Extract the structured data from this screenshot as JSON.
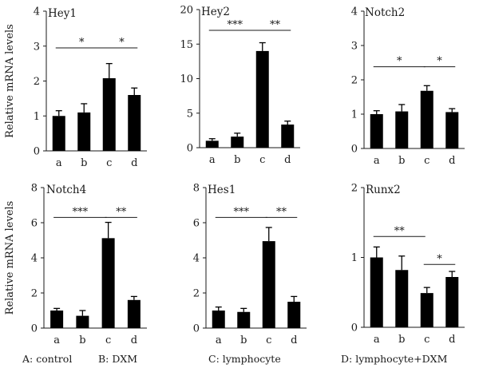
{
  "ylabel": "Relative mRNA levels",
  "legend": [
    "A: control",
    "B: DXM",
    "C: lymphocyte",
    "D: lymphocyte+DXM"
  ],
  "chart_data": [
    {
      "type": "bar",
      "title": "Hey1",
      "categories": [
        "a",
        "b",
        "c",
        "d"
      ],
      "values": [
        1.0,
        1.1,
        2.08,
        1.6
      ],
      "errors": [
        0.15,
        0.25,
        0.42,
        0.2
      ],
      "ylim": [
        0,
        4
      ],
      "yticks": [
        "0",
        "1",
        "2",
        "3",
        "4"
      ],
      "significance": [
        {
          "from": 0,
          "to": 2,
          "y": 2.95,
          "label": "*"
        },
        {
          "from": 2,
          "to": 3,
          "y": 2.95,
          "label": "*"
        }
      ]
    },
    {
      "type": "bar",
      "title": "Hey2",
      "categories": [
        "a",
        "b",
        "c",
        "d"
      ],
      "values": [
        1.0,
        1.6,
        14.0,
        3.35
      ],
      "errors": [
        0.3,
        0.5,
        1.2,
        0.5
      ],
      "ylim": [
        0,
        20
      ],
      "yticks": [
        "0",
        "5",
        "10",
        "15",
        "20"
      ],
      "significance": [
        {
          "from": 0,
          "to": 2,
          "y": 17.0,
          "label": "***"
        },
        {
          "from": 2,
          "to": 3,
          "y": 17.0,
          "label": "**"
        }
      ]
    },
    {
      "type": "bar",
      "title": "Notch2",
      "categories": [
        "a",
        "b",
        "c",
        "d"
      ],
      "values": [
        1.0,
        1.08,
        1.68,
        1.06
      ],
      "errors": [
        0.1,
        0.2,
        0.15,
        0.1
      ],
      "ylim": [
        0,
        4
      ],
      "yticks": [
        "0",
        "1",
        "2",
        "3",
        "4"
      ],
      "significance": [
        {
          "from": 0,
          "to": 2,
          "y": 2.38,
          "label": "*"
        },
        {
          "from": 2,
          "to": 3,
          "y": 2.38,
          "label": "*"
        }
      ]
    },
    {
      "type": "bar",
      "title": "Notch4",
      "categories": [
        "a",
        "b",
        "c",
        "d"
      ],
      "values": [
        1.0,
        0.7,
        5.12,
        1.6
      ],
      "errors": [
        0.12,
        0.3,
        0.9,
        0.2
      ],
      "ylim": [
        0,
        8
      ],
      "yticks": [
        "0",
        "2",
        "4",
        "6",
        "8"
      ],
      "significance": [
        {
          "from": 0,
          "to": 2,
          "y": 6.3,
          "label": "***"
        },
        {
          "from": 2,
          "to": 3,
          "y": 6.3,
          "label": "**"
        }
      ]
    },
    {
      "type": "bar",
      "title": "Hes1",
      "categories": [
        "a",
        "b",
        "c",
        "d"
      ],
      "values": [
        1.0,
        0.92,
        4.95,
        1.5
      ],
      "errors": [
        0.2,
        0.2,
        0.78,
        0.3
      ],
      "ylim": [
        0,
        8
      ],
      "yticks": [
        "0",
        "2",
        "4",
        "6",
        "8"
      ],
      "significance": [
        {
          "from": 0,
          "to": 2,
          "y": 6.3,
          "label": "***"
        },
        {
          "from": 2,
          "to": 3,
          "y": 6.3,
          "label": "**"
        }
      ]
    },
    {
      "type": "bar",
      "title": "Runx2",
      "categories": [
        "a",
        "b",
        "c",
        "d"
      ],
      "values": [
        1.0,
        0.82,
        0.49,
        0.72
      ],
      "errors": [
        0.15,
        0.2,
        0.08,
        0.08
      ],
      "ylim": [
        0,
        2
      ],
      "yticks": [
        "0",
        "1",
        "2"
      ],
      "significance": [
        {
          "from": 0,
          "to": 2,
          "y": 1.3,
          "label": "**"
        },
        {
          "from": 2,
          "to": 3,
          "y": 0.9,
          "label": "*"
        }
      ]
    }
  ]
}
